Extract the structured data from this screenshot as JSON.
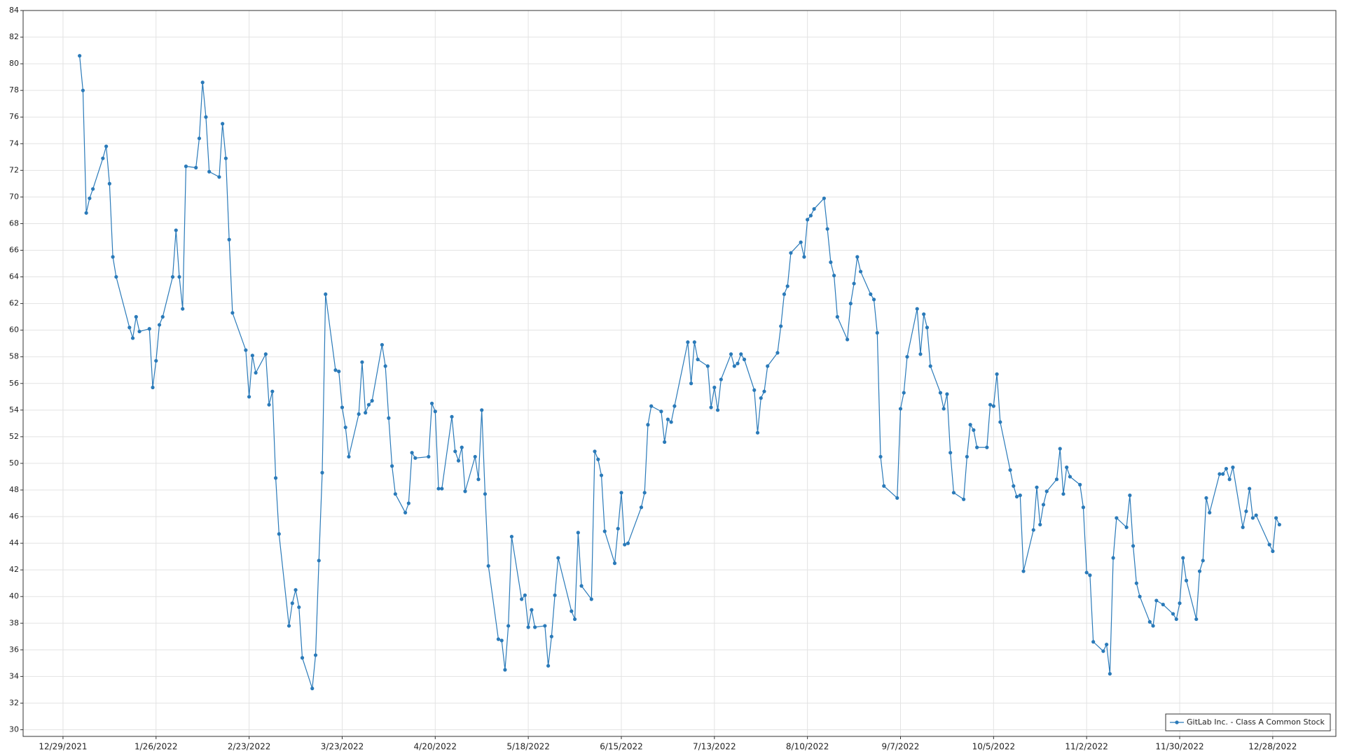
{
  "chart_data": {
    "type": "line",
    "x": [
      "2022-01-03",
      "2022-01-04",
      "2022-01-05",
      "2022-01-06",
      "2022-01-07",
      "2022-01-10",
      "2022-01-11",
      "2022-01-12",
      "2022-01-13",
      "2022-01-14",
      "2022-01-18",
      "2022-01-19",
      "2022-01-20",
      "2022-01-21",
      "2022-01-24",
      "2022-01-25",
      "2022-01-26",
      "2022-01-27",
      "2022-01-28",
      "2022-01-31",
      "2022-02-01",
      "2022-02-02",
      "2022-02-03",
      "2022-02-04",
      "2022-02-07",
      "2022-02-08",
      "2022-02-09",
      "2022-02-10",
      "2022-02-11",
      "2022-02-14",
      "2022-02-15",
      "2022-02-16",
      "2022-02-17",
      "2022-02-18",
      "2022-02-22",
      "2022-02-23",
      "2022-02-24",
      "2022-02-25",
      "2022-02-28",
      "2022-03-01",
      "2022-03-02",
      "2022-03-03",
      "2022-03-04",
      "2022-03-07",
      "2022-03-08",
      "2022-03-09",
      "2022-03-10",
      "2022-03-11",
      "2022-03-14",
      "2022-03-15",
      "2022-03-16",
      "2022-03-17",
      "2022-03-18",
      "2022-03-21",
      "2022-03-22",
      "2022-03-23",
      "2022-03-24",
      "2022-03-25",
      "2022-03-28",
      "2022-03-29",
      "2022-03-30",
      "2022-03-31",
      "2022-04-01",
      "2022-04-04",
      "2022-04-05",
      "2022-04-06",
      "2022-04-07",
      "2022-04-08",
      "2022-04-11",
      "2022-04-12",
      "2022-04-13",
      "2022-04-14",
      "2022-04-18",
      "2022-04-19",
      "2022-04-20",
      "2022-04-21",
      "2022-04-22",
      "2022-04-25",
      "2022-04-26",
      "2022-04-27",
      "2022-04-28",
      "2022-04-29",
      "2022-05-02",
      "2022-05-03",
      "2022-05-04",
      "2022-05-05",
      "2022-05-06",
      "2022-05-09",
      "2022-05-10",
      "2022-05-11",
      "2022-05-12",
      "2022-05-13",
      "2022-05-16",
      "2022-05-17",
      "2022-05-18",
      "2022-05-19",
      "2022-05-20",
      "2022-05-23",
      "2022-05-24",
      "2022-05-25",
      "2022-05-26",
      "2022-05-27",
      "2022-05-31",
      "2022-06-01",
      "2022-06-02",
      "2022-06-03",
      "2022-06-06",
      "2022-06-07",
      "2022-06-08",
      "2022-06-09",
      "2022-06-10",
      "2022-06-13",
      "2022-06-14",
      "2022-06-15",
      "2022-06-16",
      "2022-06-17",
      "2022-06-21",
      "2022-06-22",
      "2022-06-23",
      "2022-06-24",
      "2022-06-27",
      "2022-06-28",
      "2022-06-29",
      "2022-06-30",
      "2022-07-01",
      "2022-07-05",
      "2022-07-06",
      "2022-07-07",
      "2022-07-08",
      "2022-07-11",
      "2022-07-12",
      "2022-07-13",
      "2022-07-14",
      "2022-07-15",
      "2022-07-18",
      "2022-07-19",
      "2022-07-20",
      "2022-07-21",
      "2022-07-22",
      "2022-07-25",
      "2022-07-26",
      "2022-07-27",
      "2022-07-28",
      "2022-07-29",
      "2022-08-01",
      "2022-08-02",
      "2022-08-03",
      "2022-08-04",
      "2022-08-05",
      "2022-08-08",
      "2022-08-09",
      "2022-08-10",
      "2022-08-11",
      "2022-08-12",
      "2022-08-15",
      "2022-08-16",
      "2022-08-17",
      "2022-08-18",
      "2022-08-19",
      "2022-08-22",
      "2022-08-23",
      "2022-08-24",
      "2022-08-25",
      "2022-08-26",
      "2022-08-29",
      "2022-08-30",
      "2022-08-31",
      "2022-09-01",
      "2022-09-02",
      "2022-09-06",
      "2022-09-07",
      "2022-09-08",
      "2022-09-09",
      "2022-09-12",
      "2022-09-13",
      "2022-09-14",
      "2022-09-15",
      "2022-09-16",
      "2022-09-19",
      "2022-09-20",
      "2022-09-21",
      "2022-09-22",
      "2022-09-23",
      "2022-09-26",
      "2022-09-27",
      "2022-09-28",
      "2022-09-29",
      "2022-09-30",
      "2022-10-03",
      "2022-10-04",
      "2022-10-05",
      "2022-10-06",
      "2022-10-07",
      "2022-10-10",
      "2022-10-11",
      "2022-10-12",
      "2022-10-13",
      "2022-10-14",
      "2022-10-17",
      "2022-10-18",
      "2022-10-19",
      "2022-10-20",
      "2022-10-21",
      "2022-10-24",
      "2022-10-25",
      "2022-10-26",
      "2022-10-27",
      "2022-10-28",
      "2022-10-31",
      "2022-11-01",
      "2022-11-02",
      "2022-11-03",
      "2022-11-04",
      "2022-11-07",
      "2022-11-08",
      "2022-11-09",
      "2022-11-10",
      "2022-11-11",
      "2022-11-14",
      "2022-11-15",
      "2022-11-16",
      "2022-11-17",
      "2022-11-18",
      "2022-11-21",
      "2022-11-22",
      "2022-11-23",
      "2022-11-25",
      "2022-11-28",
      "2022-11-29",
      "2022-11-30",
      "2022-12-01",
      "2022-12-02",
      "2022-12-05",
      "2022-12-06",
      "2022-12-07",
      "2022-12-08",
      "2022-12-09",
      "2022-12-12",
      "2022-12-13",
      "2022-12-14",
      "2022-12-15",
      "2022-12-16",
      "2022-12-19",
      "2022-12-20",
      "2022-12-21",
      "2022-12-22",
      "2022-12-23",
      "2022-12-27",
      "2022-12-28",
      "2022-12-29",
      "2022-12-30"
    ],
    "series": [
      {
        "name": "GitLab Inc. - Class A Common Stock",
        "color": "#2a7ab9",
        "values": [
          80.6,
          78.0,
          68.8,
          69.9,
          70.6,
          72.9,
          73.8,
          71.0,
          65.5,
          64.0,
          60.2,
          59.4,
          61.0,
          59.9,
          60.1,
          55.7,
          57.7,
          60.4,
          61.0,
          64.0,
          67.5,
          64.0,
          61.6,
          72.3,
          72.2,
          74.4,
          78.6,
          76.0,
          71.9,
          71.5,
          75.5,
          72.9,
          66.8,
          61.3,
          58.5,
          55.0,
          58.1,
          56.8,
          58.2,
          54.4,
          55.4,
          48.9,
          44.7,
          37.8,
          39.5,
          40.5,
          39.2,
          35.4,
          33.1,
          35.6,
          42.7,
          49.3,
          62.7,
          57.0,
          56.9,
          54.2,
          52.7,
          50.5,
          53.7,
          57.6,
          53.8,
          54.4,
          54.7,
          58.9,
          57.3,
          53.4,
          49.8,
          47.7,
          46.3,
          47.0,
          50.8,
          50.4,
          50.5,
          54.5,
          53.9,
          48.1,
          48.1,
          53.5,
          50.9,
          50.2,
          51.2,
          47.9,
          50.5,
          48.8,
          54.0,
          47.7,
          42.3,
          36.8,
          36.7,
          34.5,
          37.8,
          44.5,
          39.8,
          40.1,
          37.7,
          39.0,
          37.7,
          37.8,
          34.8,
          37.0,
          40.1,
          42.9,
          38.9,
          38.3,
          44.8,
          40.8,
          39.8,
          50.9,
          50.3,
          49.1,
          44.9,
          42.5,
          45.1,
          47.8,
          43.9,
          44.0,
          46.7,
          47.8,
          52.9,
          54.3,
          53.9,
          51.6,
          53.3,
          53.1,
          54.3,
          59.1,
          56.0,
          59.1,
          57.8,
          57.3,
          54.2,
          55.7,
          54.0,
          56.3,
          58.2,
          57.3,
          57.5,
          58.2,
          57.8,
          55.5,
          52.3,
          54.9,
          55.4,
          57.3,
          58.3,
          60.3,
          62.7,
          63.3,
          65.8,
          66.6,
          65.5,
          68.3,
          68.6,
          69.1,
          69.9,
          67.6,
          65.1,
          64.1,
          61.0,
          59.3,
          62.0,
          63.5,
          65.5,
          64.4,
          62.7,
          62.3,
          59.8,
          50.5,
          48.3,
          47.4,
          54.1,
          55.3,
          58.0,
          61.6,
          58.2,
          61.2,
          60.2,
          57.3,
          55.3,
          54.1,
          55.2,
          50.8,
          47.8,
          47.3,
          50.5,
          52.9,
          52.5,
          51.2,
          51.2,
          54.4,
          54.3,
          56.7,
          53.1,
          49.5,
          48.3,
          47.5,
          47.6,
          41.9,
          45.0,
          48.2,
          45.4,
          46.9,
          47.9,
          48.8,
          51.1,
          47.7,
          49.7,
          49.0,
          48.4,
          46.7,
          41.8,
          41.6,
          36.6,
          35.9,
          36.4,
          34.2,
          42.9,
          45.9,
          45.2,
          47.6,
          43.8,
          41.0,
          40.0,
          38.1,
          37.8,
          39.7,
          39.4,
          38.7,
          38.3,
          39.5,
          42.9,
          41.2,
          38.3,
          41.9,
          42.7,
          47.4,
          46.3,
          49.2,
          49.2,
          49.6,
          48.8,
          49.7,
          45.2,
          46.4,
          48.1,
          45.9,
          46.1,
          43.9,
          43.4,
          45.9,
          45.4
        ]
      }
    ],
    "xlim": [
      "2021-12-17",
      "2023-01-16"
    ],
    "xticks": [
      {
        "value": "2021-12-29",
        "label": "12/29/2021"
      },
      {
        "value": "2022-01-26",
        "label": "1/26/2022"
      },
      {
        "value": "2022-02-23",
        "label": "2/23/2022"
      },
      {
        "value": "2022-03-23",
        "label": "3/23/2022"
      },
      {
        "value": "2022-04-20",
        "label": "4/20/2022"
      },
      {
        "value": "2022-05-18",
        "label": "5/18/2022"
      },
      {
        "value": "2022-06-15",
        "label": "6/15/2022"
      },
      {
        "value": "2022-07-13",
        "label": "7/13/2022"
      },
      {
        "value": "2022-08-10",
        "label": "8/10/2022"
      },
      {
        "value": "2022-09-07",
        "label": "9/7/2022"
      },
      {
        "value": "2022-10-05",
        "label": "10/5/2022"
      },
      {
        "value": "2022-11-02",
        "label": "11/2/2022"
      },
      {
        "value": "2022-11-30",
        "label": "11/30/2022"
      },
      {
        "value": "2022-12-28",
        "label": "12/28/2022"
      }
    ],
    "ylim": [
      29.5,
      84
    ],
    "yticks": [
      30,
      32,
      34,
      36,
      38,
      40,
      42,
      44,
      46,
      48,
      50,
      52,
      54,
      56,
      58,
      60,
      62,
      64,
      66,
      68,
      70,
      72,
      74,
      76,
      78,
      80,
      82,
      84
    ],
    "grid": true,
    "legend": "lower right"
  }
}
